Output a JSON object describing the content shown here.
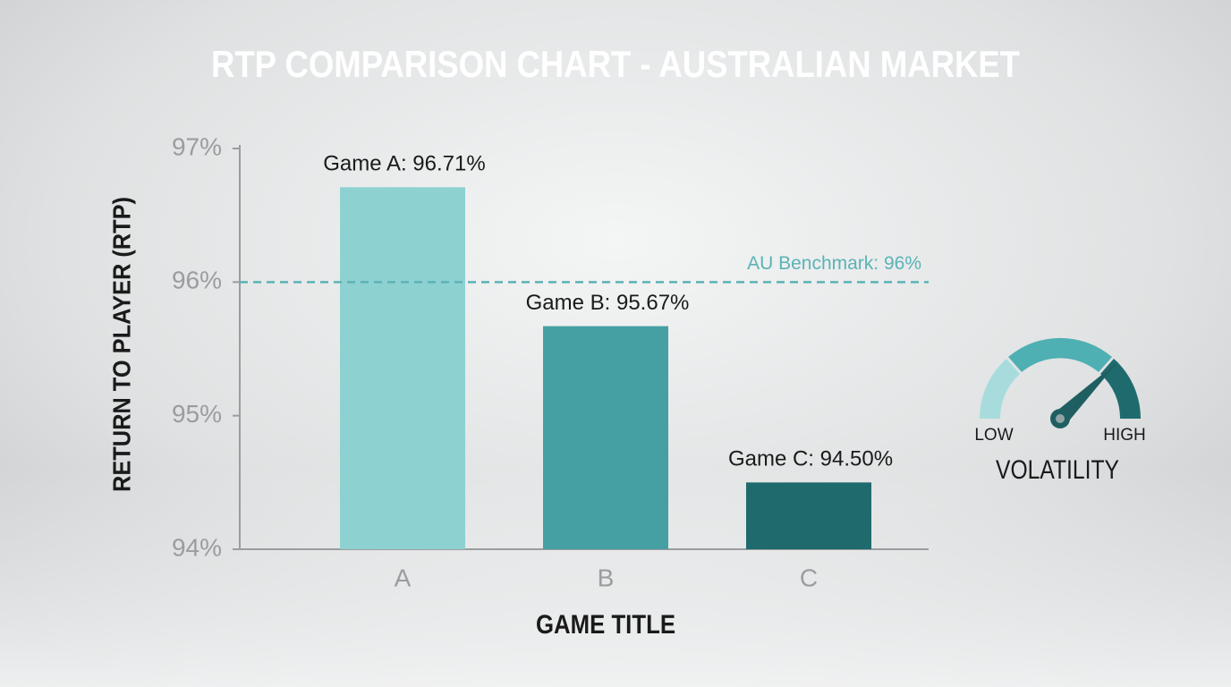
{
  "chart_data": {
    "type": "bar",
    "title": "RTP COMPARISON CHART - AUSTRALIAN MARKET",
    "y_label": "RETURN TO PLAYER (RTP)",
    "x_label": "GAME TITLE",
    "categories": [
      "A",
      "B",
      "C"
    ],
    "values": [
      96.71,
      95.67,
      94.5
    ],
    "value_labels": [
      "Game A: 96.71%",
      "Game B: 95.67%",
      "Game C: 94.50%"
    ],
    "colors": [
      "#8ed1d1",
      "#45a0a4",
      "#1f6a6d"
    ],
    "ylim": [
      94,
      97
    ],
    "yticks": [
      {
        "value": 94,
        "label": "94%"
      },
      {
        "value": 95,
        "label": "95%"
      },
      {
        "value": 96,
        "label": "96%"
      },
      {
        "value": 97,
        "label": "97%"
      }
    ],
    "grid": false,
    "benchmark": {
      "value": 96,
      "label": "AU Benchmark: 96%",
      "color": "#5bb3b5"
    },
    "gauge": {
      "low_label": "LOW",
      "high_label": "HIGH",
      "title": "VOLATILITY"
    }
  }
}
